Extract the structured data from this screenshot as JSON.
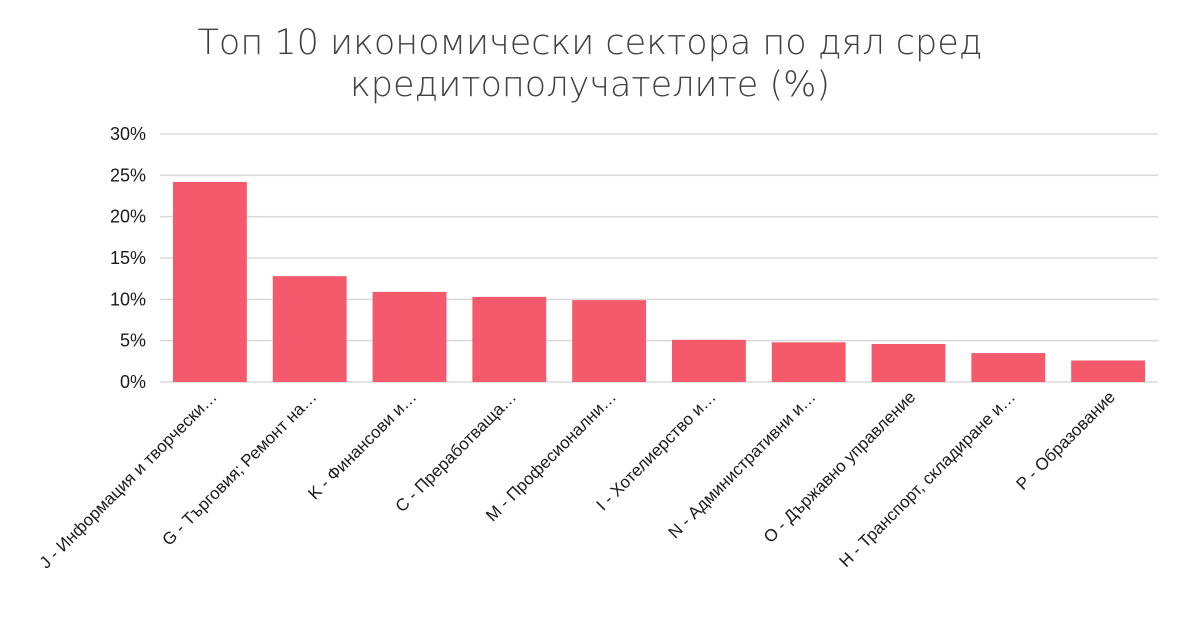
{
  "chart_data": {
    "type": "bar",
    "title_line1": "Топ 10 икономически сектора по дял сред",
    "title_line2": "кредитополучателите (%)",
    "xlabel": "",
    "ylabel": "",
    "ylim": [
      0,
      30
    ],
    "yticks": [
      0,
      5,
      10,
      15,
      20,
      25,
      30
    ],
    "ytick_labels": [
      "0%",
      "5%",
      "10%",
      "15%",
      "20%",
      "25%",
      "30%"
    ],
    "grid": true,
    "legend": "none",
    "bar_color": "#f4596c",
    "categories": [
      "J - Информация и творчески…",
      "G - Търговия; Ремонт на…",
      "K - Финансови и…",
      "C - Преработваща…",
      "M - Професионални…",
      "I - Хотелиерство и…",
      "N - Административни и…",
      "O - Държавно управление",
      "H - Транспорт, складиране и…",
      "P - Образование"
    ],
    "values": [
      24.2,
      12.8,
      10.9,
      10.3,
      9.9,
      5.1,
      4.8,
      4.6,
      3.5,
      2.6
    ]
  }
}
